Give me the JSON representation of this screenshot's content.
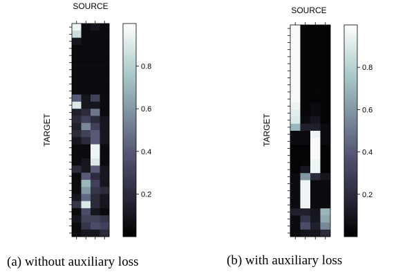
{
  "figure": {
    "panels": [
      {
        "caption": "(a) without auxiliary loss"
      },
      {
        "caption": "(b) with auxiliary loss"
      }
    ]
  },
  "chart_data": [
    {
      "type": "heatmap",
      "title": "SOURCE",
      "xlabel": "SOURCE",
      "ylabel": "TARGET",
      "colormap": "bone",
      "colorbar": {
        "ticks": [
          0.2,
          0.4,
          0.6,
          0.8
        ],
        "range": [
          0,
          1
        ]
      },
      "matrix": [
        [
          0.95,
          0.05,
          0.1,
          0.05
        ],
        [
          0.85,
          0.05,
          0.05,
          0.05
        ],
        [
          0.1,
          0.05,
          0.05,
          0.05
        ],
        [
          0.05,
          0.05,
          0.05,
          0.05
        ],
        [
          0.05,
          0.05,
          0.05,
          0.05
        ],
        [
          0.05,
          0.05,
          0.05,
          0.05
        ],
        [
          0.05,
          0.05,
          0.05,
          0.05
        ],
        [
          0.05,
          0.05,
          0.05,
          0.05
        ],
        [
          0.05,
          0.05,
          0.05,
          0.05
        ],
        [
          0.05,
          0.05,
          0.05,
          0.05
        ],
        [
          0.4,
          0.1,
          0.3,
          0.05
        ],
        [
          0.9,
          0.1,
          0.1,
          0.05
        ],
        [
          0.15,
          0.2,
          0.5,
          0.05
        ],
        [
          0.2,
          0.3,
          0.2,
          0.1
        ],
        [
          0.15,
          0.55,
          0.3,
          0.1
        ],
        [
          0.2,
          0.3,
          0.4,
          0.1
        ],
        [
          0.1,
          0.2,
          0.4,
          0.1
        ],
        [
          0.05,
          0.05,
          0.95,
          0.05
        ],
        [
          0.05,
          0.05,
          0.95,
          0.05
        ],
        [
          0.05,
          0.1,
          0.9,
          0.05
        ],
        [
          0.2,
          0.1,
          0.4,
          0.1
        ],
        [
          0.05,
          0.4,
          0.2,
          0.1
        ],
        [
          0.05,
          0.7,
          0.3,
          0.1
        ],
        [
          0.05,
          0.6,
          0.25,
          0.2
        ],
        [
          0.1,
          0.45,
          0.2,
          0.1
        ],
        [
          0.25,
          0.9,
          0.2,
          0.1
        ],
        [
          0.05,
          0.35,
          0.1,
          0.05
        ],
        [
          0.1,
          0.3,
          0.3,
          0.25
        ],
        [
          0.05,
          0.25,
          0.35,
          0.3
        ],
        [
          0.05,
          0.1,
          0.1,
          0.2
        ]
      ]
    },
    {
      "type": "heatmap",
      "title": "SOURCE",
      "xlabel": "SOURCE",
      "ylabel": "TARGET",
      "colormap": "bone",
      "colorbar": {
        "ticks": [
          0.2,
          0.4,
          0.6,
          0.8
        ],
        "range": [
          0,
          1
        ]
      },
      "matrix": [
        [
          0.98,
          0.02,
          0.02,
          0.02
        ],
        [
          0.98,
          0.02,
          0.02,
          0.02
        ],
        [
          0.98,
          0.02,
          0.02,
          0.02
        ],
        [
          0.98,
          0.02,
          0.02,
          0.02
        ],
        [
          0.98,
          0.02,
          0.02,
          0.02
        ],
        [
          0.98,
          0.02,
          0.02,
          0.02
        ],
        [
          0.98,
          0.02,
          0.02,
          0.02
        ],
        [
          0.98,
          0.02,
          0.02,
          0.02
        ],
        [
          0.98,
          0.02,
          0.02,
          0.02
        ],
        [
          0.98,
          0.02,
          0.03,
          0.02
        ],
        [
          0.98,
          0.02,
          0.02,
          0.02
        ],
        [
          0.95,
          0.02,
          0.05,
          0.02
        ],
        [
          0.92,
          0.03,
          0.05,
          0.02
        ],
        [
          0.9,
          0.05,
          0.1,
          0.02
        ],
        [
          0.7,
          0.15,
          0.15,
          0.05
        ],
        [
          0.05,
          0.05,
          0.95,
          0.05
        ],
        [
          0.05,
          0.05,
          0.98,
          0.05
        ],
        [
          0.02,
          0.02,
          0.98,
          0.02
        ],
        [
          0.02,
          0.02,
          0.98,
          0.02
        ],
        [
          0.02,
          0.03,
          0.95,
          0.02
        ],
        [
          0.02,
          0.1,
          0.95,
          0.02
        ],
        [
          0.05,
          0.6,
          0.2,
          0.1
        ],
        [
          0.05,
          0.95,
          0.05,
          0.05
        ],
        [
          0.05,
          0.95,
          0.05,
          0.05
        ],
        [
          0.05,
          0.95,
          0.05,
          0.05
        ],
        [
          0.05,
          0.95,
          0.05,
          0.05
        ],
        [
          0.15,
          0.15,
          0.1,
          0.7
        ],
        [
          0.05,
          0.25,
          0.1,
          0.65
        ],
        [
          0.05,
          0.35,
          0.15,
          0.55
        ],
        [
          0.05,
          0.1,
          0.1,
          0.2
        ]
      ]
    }
  ]
}
